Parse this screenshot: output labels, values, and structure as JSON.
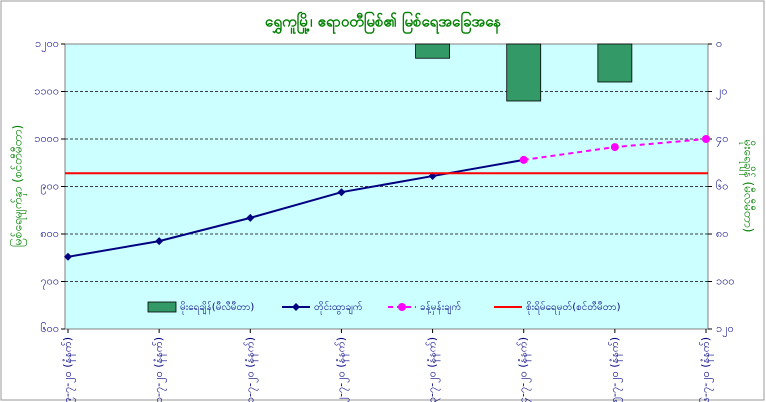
{
  "chart_data": {
    "type": "combo",
    "title": "ရွှေကူမြို့၊ ဧရာဝတီမြစ်၏ မြစ်ရေအခြေအနေ",
    "y_label": "မြစ်ရေမျက်နှာ (စင်တီမီတာ)",
    "y2_label": "မိုးရေချိန် (မီလီမီတာ)",
    "categories": [
      "၉-၇-၂၀ (နံနက်)",
      "၁၀-၇-၂၀ (နံနက်)",
      "၁၁-၇-၂၀ (နံနက်)",
      "၁၂-၇-၂၀ (နံနက်)",
      "၁၃-၇-၂၀ (နံနက်)",
      "၁၄-၇-၂၀ (နံနက်)",
      "၁၅-၇-၂၀ (နံနက်)",
      "၁၆-၇-၂၀ (နံနက်)"
    ],
    "ylim": [
      600,
      1200
    ],
    "yticks": [
      {
        "value": 600,
        "label": "၆၀၀"
      },
      {
        "value": 700,
        "label": "၇၀၀"
      },
      {
        "value": 800,
        "label": "၈၀၀"
      },
      {
        "value": 900,
        "label": "၉၀၀"
      },
      {
        "value": 1000,
        "label": "၁၀၀၀"
      },
      {
        "value": 1100,
        "label": "၁၁၀၀"
      },
      {
        "value": 1200,
        "label": "၁၂၀၀"
      }
    ],
    "y2lim": [
      0,
      120
    ],
    "y2_inverted": true,
    "y2ticks": [
      {
        "value": 0,
        "label": "၀"
      },
      {
        "value": 20,
        "label": "၂၀"
      },
      {
        "value": 40,
        "label": "၄၀"
      },
      {
        "value": 60,
        "label": "၆၀"
      },
      {
        "value": 80,
        "label": "၈၀"
      },
      {
        "value": 100,
        "label": "၁၀၀"
      },
      {
        "value": 120,
        "label": "၁၂၀"
      }
    ],
    "grid": true,
    "background": "#ccffff",
    "series": [
      {
        "name": "မိုးရေချိန်(မီလီမီတာ)",
        "type": "bar",
        "axis": "y2",
        "color": "#339966",
        "values": [
          0,
          0,
          0,
          0,
          6,
          24,
          16,
          0
        ]
      },
      {
        "name": "တိုင်းထွာချက်",
        "type": "line",
        "color": "#000080",
        "marker": "diamond",
        "values": [
          752,
          785,
          834,
          888,
          922,
          956,
          null,
          null
        ]
      },
      {
        "name": "ခန့်မှန်းချက်",
        "type": "line",
        "color": "#ff00ff",
        "marker": "circle",
        "dashed": true,
        "values": [
          null,
          null,
          null,
          null,
          null,
          956,
          983,
          1000
        ]
      },
      {
        "name": "စိုးရိမ်ရေမှတ်(စင်တီမီတာ)",
        "type": "line",
        "color": "#ff0000",
        "values": [
          928,
          928,
          928,
          928,
          928,
          928,
          928,
          928
        ]
      }
    ]
  }
}
